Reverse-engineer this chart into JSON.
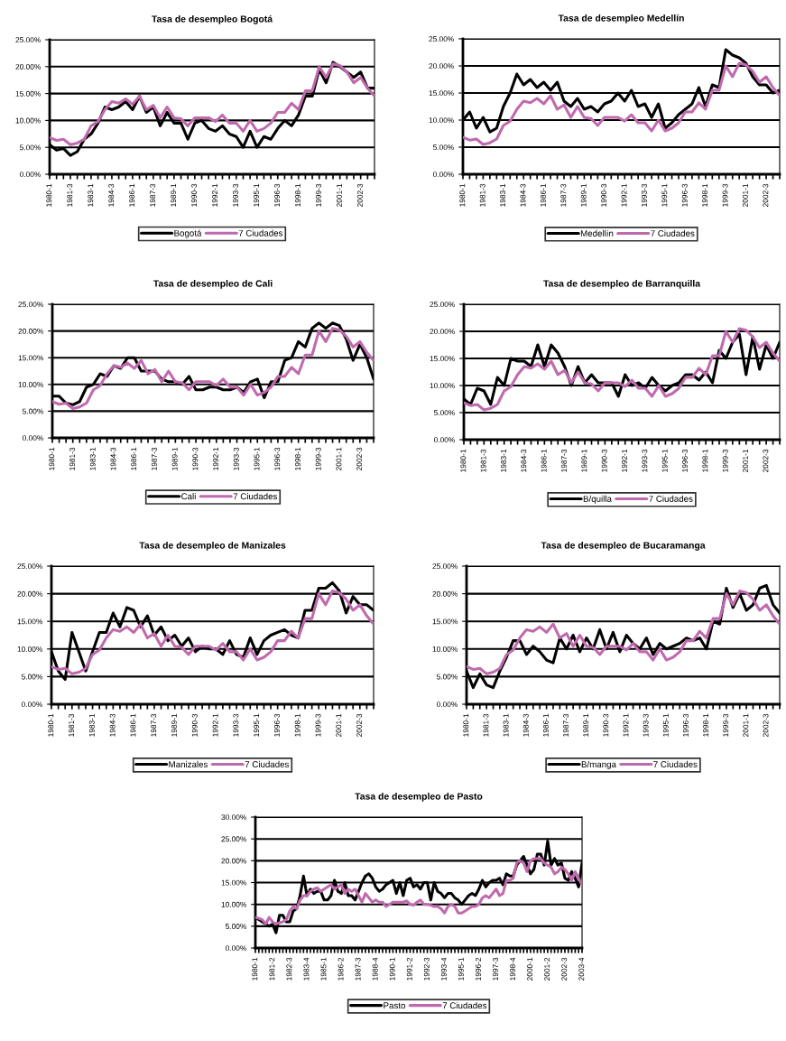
{
  "chart_data": [
    {
      "type": "line",
      "title": "Tasa de desempleo Bogotá",
      "categories": [
        "1980-1",
        null,
        null,
        "1981-3",
        null,
        null,
        "1983-1",
        null,
        null,
        "1984-3",
        null,
        null,
        "1986-1",
        null,
        null,
        "1987-3",
        null,
        null,
        "1989-1",
        null,
        null,
        "1990-3",
        null,
        null,
        "1992-1",
        null,
        null,
        "1993-3",
        null,
        null,
        "1995-1",
        null,
        null,
        "1996-3",
        null,
        null,
        "1998-1",
        null,
        null,
        "1999-3",
        null,
        null,
        "2001-1",
        null,
        null,
        "2002-3",
        null,
        null
      ],
      "series": [
        {
          "name": "Bogotá",
          "color": "#000000",
          "values": [
            5.5,
            4.5,
            4.8,
            3.5,
            4.2,
            6.5,
            7.5,
            9.5,
            12.5,
            12.0,
            12.5,
            13.5,
            12.0,
            14.5,
            11.5,
            12.5,
            9.0,
            11.5,
            9.5,
            9.5,
            6.5,
            9.5,
            10.0,
            8.5,
            8.0,
            9.0,
            7.5,
            7.0,
            5.0,
            8.0,
            5.0,
            7.0,
            6.5,
            8.5,
            10.0,
            9.0,
            11.0,
            14.5,
            14.5,
            19.5,
            17.0,
            20.8,
            20.0,
            19.0,
            18.0,
            19.0,
            16.0,
            16.0
          ]
        },
        {
          "name": "7 Ciudades",
          "color": "#c06aae",
          "values": [
            6.8,
            6.3,
            6.5,
            5.5,
            5.8,
            6.5,
            9.0,
            9.8,
            12.0,
            13.5,
            13.2,
            14.0,
            13.0,
            14.5,
            12.0,
            12.8,
            10.5,
            12.5,
            10.5,
            10.3,
            9.0,
            10.5,
            10.5,
            10.5,
            9.8,
            11.0,
            9.5,
            9.5,
            8.0,
            10.0,
            8.0,
            8.5,
            9.5,
            11.5,
            11.5,
            13.2,
            12.0,
            15.5,
            15.5,
            20.0,
            18.0,
            20.5,
            20.2,
            19.0,
            17.0,
            18.0,
            16.0,
            14.5
          ]
        }
      ],
      "ylim": [
        0,
        25
      ],
      "yticks": [
        {
          "value": 0,
          "label": "0.00%"
        },
        {
          "value": 5,
          "label": "5.00%"
        },
        {
          "value": 10,
          "label": "10.00%"
        },
        {
          "value": 15,
          "label": "15.00%"
        },
        {
          "value": 20,
          "label": "20.00%"
        },
        {
          "value": 25,
          "label": "25.00%"
        }
      ],
      "grid": "y",
      "legend": "bottom"
    },
    {
      "type": "line",
      "title": "Tasa de desempleo Medellín",
      "categories": [
        "1980-1",
        null,
        null,
        "1981-3",
        null,
        null,
        "1983-1",
        null,
        null,
        "1984-3",
        null,
        null,
        "1986-1",
        null,
        null,
        "1987-3",
        null,
        null,
        "1989-1",
        null,
        null,
        "1990-3",
        null,
        null,
        "1992-1",
        null,
        null,
        "1993-3",
        null,
        null,
        "1995-1",
        null,
        null,
        "1996-3",
        null,
        null,
        "1998-1",
        null,
        null,
        "1999-3",
        null,
        null,
        "2001-1",
        null,
        null,
        "2002-3",
        null,
        null
      ],
      "series": [
        {
          "name": "Medellín",
          "color": "#000000",
          "values": [
            10,
            11.5,
            8.5,
            10.5,
            7.8,
            8.5,
            12.5,
            15,
            18.5,
            16.5,
            17.5,
            16,
            17,
            15.5,
            17,
            13.5,
            12.5,
            14,
            12,
            12.5,
            11.5,
            13,
            13.5,
            15,
            13.5,
            15.5,
            12.5,
            13,
            10.5,
            13,
            8.5,
            9.5,
            11,
            12,
            13,
            16,
            12.5,
            16.5,
            16,
            23,
            22,
            21.5,
            20.5,
            18,
            16.5,
            16.5,
            15,
            15.5
          ]
        },
        {
          "name": "7 Ciudades",
          "color": "#c06aae",
          "values": [
            6.8,
            6.3,
            6.5,
            5.5,
            5.8,
            6.5,
            9.0,
            9.8,
            12.0,
            13.5,
            13.2,
            14.0,
            13.0,
            14.5,
            12.0,
            12.8,
            10.5,
            12.5,
            10.5,
            10.3,
            9.0,
            10.5,
            10.5,
            10.5,
            9.8,
            11.0,
            9.5,
            9.5,
            8.0,
            10.0,
            8.0,
            8.5,
            9.5,
            11.5,
            11.5,
            13.2,
            12.0,
            15.5,
            15.5,
            20.0,
            18.0,
            20.5,
            20.2,
            19.0,
            17.0,
            18.0,
            16.0,
            14.5
          ]
        }
      ],
      "ylim": [
        0,
        25
      ],
      "yticks": [
        {
          "value": 0,
          "label": "0.00%"
        },
        {
          "value": 5,
          "label": "5.00%"
        },
        {
          "value": 10,
          "label": "10.00%"
        },
        {
          "value": 15,
          "label": "15.00%"
        },
        {
          "value": 20,
          "label": "20.00%"
        },
        {
          "value": 25,
          "label": "25.00%"
        }
      ],
      "grid": "y",
      "legend": "bottom"
    },
    {
      "type": "line",
      "title": "Tasa de desempleo de Cali",
      "categories": [
        "1980-1",
        null,
        null,
        "1981-3",
        null,
        null,
        "1983-1",
        null,
        null,
        "1984-3",
        null,
        null,
        "1986-1",
        null,
        null,
        "1987-3",
        null,
        null,
        "1989-1",
        null,
        null,
        "1990-3",
        null,
        null,
        "1992-1",
        null,
        null,
        "1993-3",
        null,
        null,
        "1995-1",
        null,
        null,
        "1996-3",
        null,
        null,
        "1998-1",
        null,
        null,
        "1999-3",
        null,
        null,
        "2001-1",
        null,
        null,
        "2002-3",
        null,
        null
      ],
      "series": [
        {
          "name": "Cali",
          "color": "#000000",
          "values": [
            7.8,
            7.8,
            6.5,
            6.2,
            6.8,
            9.5,
            10,
            12,
            11.5,
            13.5,
            13,
            15,
            15,
            12.5,
            12.5,
            12.5,
            11,
            10.5,
            10.5,
            10,
            11.5,
            9,
            9,
            9.5,
            9.5,
            9,
            9,
            9.5,
            8.5,
            10.5,
            11,
            7.5,
            10.5,
            10.5,
            14.5,
            15,
            18,
            17,
            20.5,
            21.5,
            20.5,
            21.5,
            21,
            18.5,
            14.5,
            17.5,
            15,
            11
          ]
        },
        {
          "name": "7 Ciudades",
          "color": "#c06aae",
          "values": [
            6.8,
            6.3,
            6.5,
            5.5,
            5.8,
            6.5,
            9.0,
            9.8,
            12.0,
            13.5,
            13.2,
            14.0,
            13.0,
            14.5,
            12.0,
            12.8,
            10.5,
            12.5,
            10.5,
            10.3,
            9.0,
            10.5,
            10.5,
            10.5,
            9.8,
            11.0,
            9.5,
            9.5,
            8.0,
            10.0,
            8.0,
            8.5,
            9.5,
            11.5,
            11.5,
            13.2,
            12.0,
            15.5,
            15.5,
            20.0,
            18.0,
            20.5,
            20.2,
            19.0,
            17.0,
            18.0,
            16.0,
            14.5
          ]
        }
      ],
      "ylim": [
        0,
        25
      ],
      "yticks": [
        {
          "value": 0,
          "label": "0.00%"
        },
        {
          "value": 5,
          "label": "5.00%"
        },
        {
          "value": 10,
          "label": "10.00%"
        },
        {
          "value": 15,
          "label": "15.00%"
        },
        {
          "value": 20,
          "label": "20.00%"
        },
        {
          "value": 25,
          "label": "25.00%"
        }
      ],
      "grid": "y",
      "legend": "bottom"
    },
    {
      "type": "line",
      "title": "Tasa de desempleo de Barranquilla",
      "categories": [
        "1980-1",
        null,
        null,
        "1981-3",
        null,
        null,
        "1983-1",
        null,
        null,
        "1984-3",
        null,
        null,
        "1986-1",
        null,
        null,
        "1987-3",
        null,
        null,
        "1989-1",
        null,
        null,
        "1990-3",
        null,
        null,
        "1992-1",
        null,
        null,
        "1993-3",
        null,
        null,
        "1995-1",
        null,
        null,
        "1996-3",
        null,
        null,
        "1998-1",
        null,
        null,
        "1999-3",
        null,
        null,
        "2001-1",
        null,
        null,
        "2002-3",
        null,
        null
      ],
      "series": [
        {
          "name": "B/quilla",
          "color": "#000000",
          "values": [
            7.5,
            6.5,
            9.5,
            9,
            6.5,
            11.5,
            10,
            15,
            14.5,
            14.5,
            13.5,
            17.5,
            13.5,
            17.5,
            16,
            13.5,
            10,
            13.5,
            10.5,
            12,
            10.5,
            10.5,
            10.5,
            8,
            12,
            10,
            10.5,
            9.5,
            11.5,
            10,
            9,
            10,
            10.5,
            12,
            12,
            11,
            12.5,
            10.5,
            16.5,
            15,
            18,
            19.5,
            12,
            19,
            13,
            17.5,
            15,
            18
          ]
        },
        {
          "name": "7 Ciudades",
          "color": "#c06aae",
          "values": [
            6.8,
            6.3,
            6.5,
            5.5,
            5.8,
            6.5,
            9.0,
            9.8,
            12.0,
            13.5,
            13.2,
            14.0,
            13.0,
            14.5,
            12.0,
            12.8,
            10.5,
            12.5,
            10.5,
            10.3,
            9.0,
            10.5,
            10.5,
            10.5,
            9.8,
            11.0,
            9.5,
            9.5,
            8.0,
            10.0,
            8.0,
            8.5,
            9.5,
            11.5,
            11.5,
            13.2,
            12.0,
            15.5,
            15.5,
            20.0,
            18.0,
            20.5,
            20.2,
            19.0,
            17.0,
            18.0,
            16.0,
            14.5
          ]
        }
      ],
      "ylim": [
        0,
        25
      ],
      "yticks": [
        {
          "value": 0,
          "label": "0.00%"
        },
        {
          "value": 5,
          "label": "5.00%"
        },
        {
          "value": 10,
          "label": "10.00%"
        },
        {
          "value": 15,
          "label": "15.00%"
        },
        {
          "value": 20,
          "label": "20.00%"
        },
        {
          "value": 25,
          "label": "25.00%"
        }
      ],
      "grid": "y",
      "legend": "bottom"
    },
    {
      "type": "line",
      "title": "Tasa de desempleo de Manizales",
      "categories": [
        "1980-1",
        null,
        null,
        "1981-3",
        null,
        null,
        "1983-1",
        null,
        null,
        "1984-3",
        null,
        null,
        "1986-1",
        null,
        null,
        "1987-3",
        null,
        null,
        "1989-1",
        null,
        null,
        "1990-3",
        null,
        null,
        "1992-1",
        null,
        null,
        "1993-3",
        null,
        null,
        "1995-1",
        null,
        null,
        "1996-3",
        null,
        null,
        "1998-1",
        null,
        null,
        "1999-3",
        null,
        null,
        "2001-1",
        null,
        null,
        "2002-3",
        null,
        null
      ],
      "series": [
        {
          "name": "Manizales",
          "color": "#000000",
          "values": [
            9.5,
            6,
            4.5,
            13,
            9.5,
            6,
            9.5,
            13,
            13,
            16.5,
            14,
            17.5,
            17,
            14,
            16,
            12.5,
            14,
            11.5,
            12.5,
            10.5,
            12,
            9.5,
            10.5,
            10,
            10,
            9,
            11.5,
            9,
            8.5,
            12,
            9,
            11.5,
            12.5,
            13,
            13.5,
            12.5,
            12,
            17,
            17,
            21,
            21,
            22,
            20.5,
            16.5,
            19.5,
            18,
            18,
            17
          ]
        },
        {
          "name": "7 Ciudades",
          "color": "#c06aae",
          "values": [
            6.8,
            6.3,
            6.5,
            5.5,
            5.8,
            6.5,
            9.0,
            9.8,
            12.0,
            13.5,
            13.2,
            14.0,
            13.0,
            14.5,
            12.0,
            12.8,
            10.5,
            12.5,
            10.5,
            10.3,
            9.0,
            10.5,
            10.5,
            10.5,
            9.8,
            11.0,
            9.5,
            9.5,
            8.0,
            10.0,
            8.0,
            8.5,
            9.5,
            11.5,
            11.5,
            13.2,
            12.0,
            15.5,
            15.5,
            20.0,
            18.0,
            20.5,
            20.2,
            19.0,
            17.0,
            18.0,
            16.0,
            14.5
          ]
        }
      ],
      "ylim": [
        0,
        25
      ],
      "yticks": [
        {
          "value": 0,
          "label": "0.00%"
        },
        {
          "value": 5,
          "label": "5.00%"
        },
        {
          "value": 10,
          "label": "10.00%"
        },
        {
          "value": 15,
          "label": "15.00%"
        },
        {
          "value": 20,
          "label": "20.00%"
        },
        {
          "value": 25,
          "label": "25.00%"
        }
      ],
      "grid": "y",
      "legend": "bottom"
    },
    {
      "type": "line",
      "title": "Tasa de desempleo de Bucaramanga",
      "categories": [
        "1980-1",
        null,
        null,
        "1981-3",
        null,
        null,
        "1983-1",
        null,
        null,
        "1984-3",
        null,
        null,
        "1986-1",
        null,
        null,
        "1987-3",
        null,
        null,
        "1989-1",
        null,
        null,
        "1990-3",
        null,
        null,
        "1992-1",
        null,
        null,
        "1993-3",
        null,
        null,
        "1995-1",
        null,
        null,
        "1996-3",
        null,
        null,
        "1998-1",
        null,
        null,
        "1999-3",
        null,
        null,
        "2001-1",
        null,
        null,
        "2002-3",
        null,
        null
      ],
      "series": [
        {
          "name": "B/manga",
          "color": "#000000",
          "values": [
            6,
            3,
            5.5,
            3.5,
            3,
            6,
            8.5,
            11.5,
            11.5,
            9,
            10.5,
            9.5,
            8,
            7.5,
            12,
            10,
            12.5,
            9.5,
            12,
            10,
            13.5,
            10,
            13,
            9.5,
            12.5,
            11,
            10,
            12,
            9,
            11,
            10,
            10.5,
            11,
            12,
            11.5,
            12,
            10,
            15,
            14.5,
            21,
            17.5,
            20,
            17,
            18,
            21,
            21.5,
            18,
            16.5
          ]
        },
        {
          "name": "7 Ciudades",
          "color": "#c06aae",
          "values": [
            6.8,
            6.3,
            6.5,
            5.5,
            5.8,
            6.5,
            9.0,
            9.8,
            12.0,
            13.5,
            13.2,
            14.0,
            13.0,
            14.5,
            12.0,
            12.8,
            10.5,
            12.5,
            10.5,
            10.3,
            9.0,
            10.5,
            10.5,
            10.5,
            9.8,
            11.0,
            9.5,
            9.5,
            8.0,
            10.0,
            8.0,
            8.5,
            9.5,
            11.5,
            11.5,
            13.2,
            12.0,
            15.5,
            15.5,
            20.0,
            18.0,
            20.5,
            20.2,
            19.0,
            17.0,
            18.0,
            16.0,
            14.5
          ]
        }
      ],
      "ylim": [
        0,
        25
      ],
      "yticks": [
        {
          "value": 0,
          "label": "0.00%"
        },
        {
          "value": 5,
          "label": "5.00%"
        },
        {
          "value": 10,
          "label": "10.00%"
        },
        {
          "value": 15,
          "label": "15.00%"
        },
        {
          "value": 20,
          "label": "20.00%"
        },
        {
          "value": 25,
          "label": "25.00%"
        }
      ],
      "grid": "y",
      "legend": "bottom"
    },
    {
      "type": "line",
      "title": "Tasa de desempleo de Pasto",
      "categories": [
        "1980-1",
        null,
        null,
        null,
        null,
        "1981-2",
        null,
        null,
        null,
        null,
        "1982-3",
        null,
        null,
        null,
        null,
        "1983-4",
        null,
        null,
        null,
        null,
        "1985-1",
        null,
        null,
        null,
        null,
        "1986-2",
        null,
        null,
        null,
        null,
        "1987-3",
        null,
        null,
        null,
        null,
        "1988-4",
        null,
        null,
        null,
        null,
        "1990-1",
        null,
        null,
        null,
        null,
        "1991-2",
        null,
        null,
        null,
        null,
        "1992-3",
        null,
        null,
        null,
        null,
        "1993-4",
        null,
        null,
        null,
        null,
        "1995-1",
        null,
        null,
        null,
        null,
        "1996-2",
        null,
        null,
        null,
        null,
        "1997-3",
        null,
        null,
        null,
        null,
        "1998-4",
        null,
        null,
        null,
        null,
        "2000-1",
        null,
        null,
        null,
        null,
        "2001-2",
        null,
        null,
        null,
        null,
        "2002-3",
        null,
        null,
        null,
        null,
        "2003-4"
      ],
      "series": [
        {
          "name": "Pasto",
          "color": "#000000",
          "values": [
            7,
            6.5,
            6,
            5.5,
            5,
            5.5,
            3.5,
            7.5,
            7.5,
            6,
            6,
            8.5,
            9,
            12,
            16.5,
            12,
            13.5,
            12.5,
            13,
            13,
            11,
            11,
            12,
            15.5,
            13,
            12.5,
            15,
            12,
            12,
            11,
            13,
            15,
            16.5,
            17,
            16,
            14,
            13,
            13.5,
            14.5,
            15,
            15.5,
            12.5,
            15,
            12,
            15.5,
            16,
            14,
            14.5,
            13.5,
            15,
            15,
            11,
            15,
            13,
            12.5,
            11.5,
            12.5,
            12.5,
            11.5,
            11,
            10,
            11,
            12,
            12.5,
            12,
            13.5,
            15.5,
            14,
            15,
            15.5,
            15.5,
            16,
            14.5,
            17,
            16.5,
            16.5,
            19,
            20,
            21,
            19,
            17,
            18,
            21.5,
            21.5,
            19,
            24.5,
            19,
            20.5,
            19,
            19.5,
            16,
            15.5,
            17.5,
            16,
            14,
            19.5
          ]
        },
        {
          "name": "7 Ciudades",
          "color": "#c06aae",
          "values": [
            7,
            6.8,
            6.5,
            5.5,
            7,
            6,
            5.5,
            5.8,
            6,
            6.5,
            8.5,
            9.5,
            9,
            11,
            12,
            12,
            13,
            13.5,
            13.8,
            13,
            13.5,
            14,
            14.5,
            13.5,
            14,
            14.5,
            12.5,
            13.5,
            13,
            13.5,
            12,
            10.5,
            12.5,
            11.5,
            10.5,
            11,
            10.5,
            10.5,
            9.5,
            10,
            10.5,
            10.5,
            10.5,
            10.5,
            10.8,
            10,
            9.8,
            10.5,
            11,
            10,
            10,
            9.8,
            9.5,
            9.5,
            9,
            8,
            9.5,
            10,
            9.5,
            8,
            8,
            8.5,
            9,
            9.5,
            9.5,
            10,
            11.5,
            12,
            11.5,
            12.5,
            13.5,
            12,
            12.5,
            15.5,
            15.5,
            16,
            19.5,
            20,
            19.5,
            17.5,
            20,
            20.5,
            20.5,
            20.5,
            19.5,
            19,
            18.5,
            17,
            17.5,
            18.5,
            18,
            17,
            15.5,
            17.5,
            16,
            14.5
          ]
        }
      ],
      "ylim": [
        0,
        30
      ],
      "yticks": [
        {
          "value": 0,
          "label": "0.00%"
        },
        {
          "value": 5,
          "label": "5.00%"
        },
        {
          "value": 10,
          "label": "10.00%"
        },
        {
          "value": 15,
          "label": "15.00%"
        },
        {
          "value": 20,
          "label": "20.00%"
        },
        {
          "value": 25,
          "label": "25.00%"
        },
        {
          "value": 30,
          "label": "30.00%"
        }
      ],
      "grid": "y",
      "legend": "bottom"
    }
  ]
}
